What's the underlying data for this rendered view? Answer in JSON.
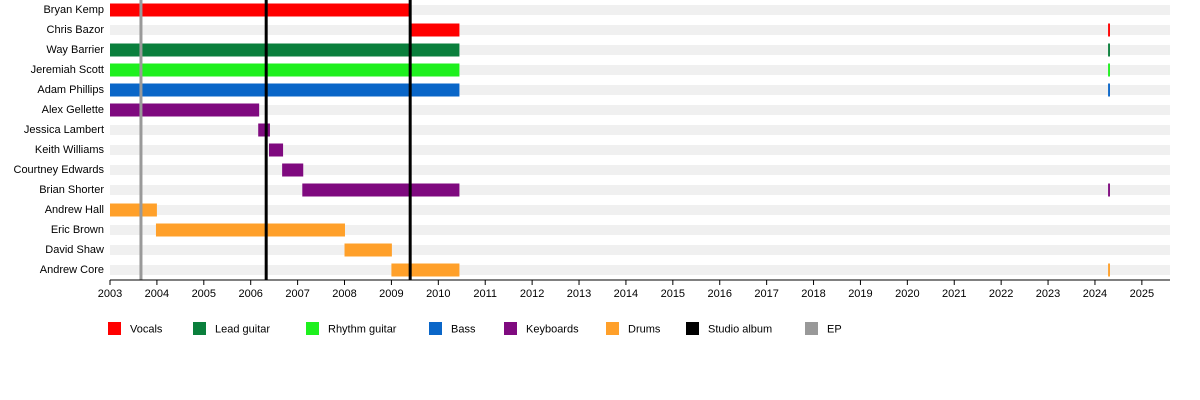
{
  "chart_data": {
    "type": "timeline",
    "categories": [
      "Bryan Kemp",
      "Chris Bazor",
      "Way Barrier",
      "Jeremiah Scott",
      "Adam Phillips",
      "Alex Gellette",
      "Jessica Lambert",
      "Keith Williams",
      "Courtney Edwards",
      "Brian Shorter",
      "Andrew Hall",
      "Eric Brown",
      "David Shaw",
      "Andrew Core"
    ],
    "series": [
      {
        "name": "Vocals",
        "color": "#ff0000",
        "values": [
          [
            [
              2003,
              2009.4
            ]
          ],
          [
            [
              2009.4,
              2010.45
            ],
            [
              2024.28,
              2024.32
            ]
          ],
          null,
          null,
          null,
          null,
          null,
          null,
          null,
          null,
          null,
          null,
          null,
          null
        ]
      },
      {
        "name": "Lead guitar",
        "color": "#0a7f3c",
        "values": [
          null,
          null,
          [
            [
              2003,
              2010.45
            ],
            [
              2024.28,
              2024.32
            ]
          ],
          null,
          null,
          null,
          null,
          null,
          null,
          null,
          null,
          null,
          null,
          null
        ]
      },
      {
        "name": "Rhythm guitar",
        "color": "#1ef01e",
        "values": [
          null,
          null,
          null,
          [
            [
              2003,
              2010.45
            ],
            [
              2024.28,
              2024.32
            ]
          ],
          null,
          null,
          null,
          null,
          null,
          null,
          null,
          null,
          null,
          null
        ]
      },
      {
        "name": "Bass",
        "color": "#0a66c8",
        "values": [
          null,
          null,
          null,
          null,
          [
            [
              2003,
              2010.45
            ],
            [
              2024.28,
              2024.32
            ]
          ],
          null,
          null,
          null,
          null,
          null,
          null,
          null,
          null,
          null
        ]
      },
      {
        "name": "Keyboards",
        "color": "#7f0a7f",
        "values": [
          null,
          null,
          null,
          null,
          null,
          [
            [
              2003,
              2006.18
            ]
          ],
          [
            [
              2006.16,
              2006.41
            ]
          ],
          [
            [
              2006.39,
              2006.69
            ]
          ],
          [
            [
              2006.67,
              2007.12
            ]
          ],
          [
            [
              2007.1,
              2010.45
            ],
            [
              2024.28,
              2024.32
            ]
          ],
          null,
          null,
          null,
          null
        ]
      },
      {
        "name": "Drums",
        "color": "#ffa02a",
        "values": [
          null,
          null,
          null,
          null,
          null,
          null,
          null,
          null,
          null,
          null,
          [
            [
              2003,
              2004
            ]
          ],
          [
            [
              2003.98,
              2008.01
            ]
          ],
          [
            [
              2008,
              2009.01
            ]
          ],
          [
            [
              2009,
              2010.45
            ],
            [
              2024.28,
              2024.32
            ]
          ]
        ]
      }
    ],
    "events": [
      {
        "name": "Studio album",
        "color": "#000000",
        "x": [
          2006.33,
          2009.4
        ]
      },
      {
        "name": "EP",
        "color": "#999999",
        "x": [
          2003.66
        ]
      }
    ],
    "xlim": [
      2003,
      2025.6
    ],
    "xticks": [
      2003,
      2004,
      2005,
      2006,
      2007,
      2008,
      2009,
      2010,
      2011,
      2012,
      2013,
      2014,
      2015,
      2016,
      2017,
      2018,
      2019,
      2020,
      2021,
      2022,
      2023,
      2024,
      2025
    ]
  }
}
